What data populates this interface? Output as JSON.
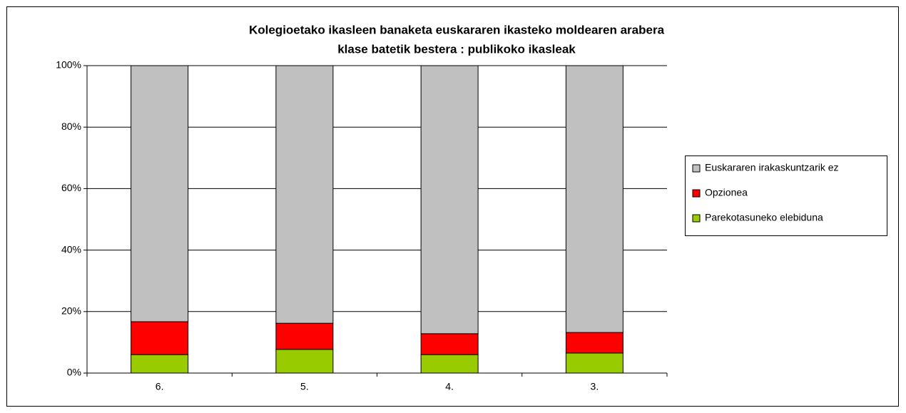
{
  "chart_data": {
    "type": "stacked_bar",
    "title": [
      "Kolegioetako ikasleen banaketa euskararen ikasteko moldearen arabera",
      "klase batetik bestera : publikoko ikasleak"
    ],
    "categories": [
      "6.",
      "5.",
      "4.",
      "3."
    ],
    "series": [
      {
        "name": "Parekotasuneko elebiduna",
        "color": "#99cc00",
        "values": [
          6.0,
          7.7,
          6.0,
          6.5
        ]
      },
      {
        "name": "Opzionea",
        "color": "#ff0000",
        "values": [
          10.7,
          8.5,
          6.8,
          6.7
        ]
      },
      {
        "name": "Euskararen irakaskuntzarik ez",
        "color": "#c0c0c0",
        "values": [
          83.3,
          83.8,
          87.2,
          86.8
        ]
      }
    ],
    "ylim": [
      0,
      100
    ],
    "yticks": [
      {
        "value": 0,
        "label": "0%"
      },
      {
        "value": 20,
        "label": "20%"
      },
      {
        "value": 40,
        "label": "40%"
      },
      {
        "value": 60,
        "label": "60%"
      },
      {
        "value": 80,
        "label": "80%"
      },
      {
        "value": 100,
        "label": "100%"
      }
    ],
    "grid": true,
    "legend": "right"
  }
}
